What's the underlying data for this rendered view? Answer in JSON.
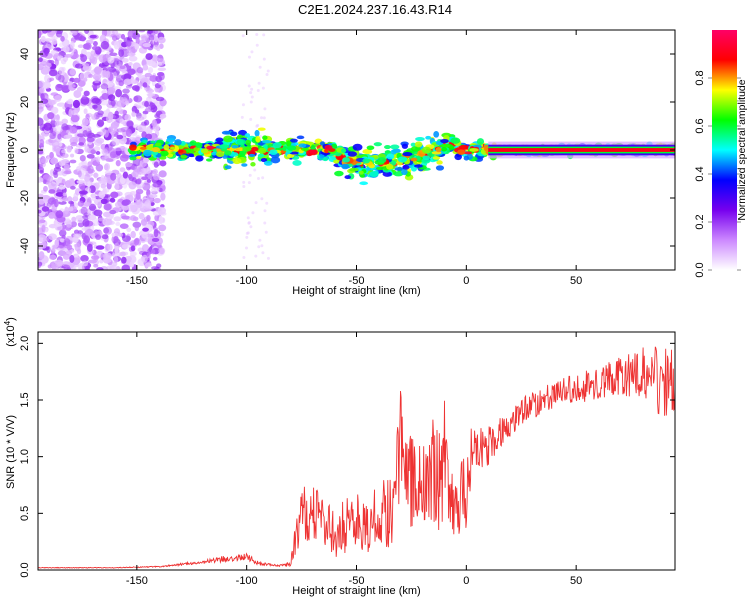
{
  "title": "C2E1.2024.237.16.43.R14",
  "chart_data": [
    {
      "type": "heatmap",
      "xlabel": "Height of straight line (km)",
      "ylabel": "Frequency (Hz)",
      "xlim": [
        -195,
        95
      ],
      "ylim": [
        -50,
        50
      ],
      "xticks": [
        -150,
        -100,
        -50,
        0,
        50
      ],
      "yticks": [
        -40,
        -20,
        0,
        20,
        40
      ],
      "colorbar": {
        "label": "Normalized spectral amplitude",
        "range": [
          0,
          1
        ],
        "ticks": [
          "0.0",
          "0.2",
          "0.4",
          "0.6",
          "0.8"
        ],
        "colors": [
          "#ffffff",
          "#cc88ff",
          "#7700ee",
          "#0000ff",
          "#00ffff",
          "#00ff00",
          "#ffff00",
          "#ff0000",
          "#ff0066"
        ]
      },
      "features": [
        {
          "label": "noise-scatter",
          "x_range": [
            -195,
            -138
          ],
          "freq_range": [
            -50,
            50
          ],
          "amplitude": 0.1
        },
        {
          "label": "signal-band",
          "x_range": [
            -152,
            95
          ],
          "center_freq": 0,
          "peak_amplitude": 0.95
        },
        {
          "label": "strong-tail",
          "x_range": [
            10,
            95
          ],
          "center_freq": 0,
          "amplitude": 0.9
        }
      ]
    },
    {
      "type": "line",
      "xlabel": "Height of straight line (km)",
      "ylabel": "SNR (10 * V/V)",
      "yscale_label": "(x10",
      "yscale_exp": "4",
      "xlim": [
        -195,
        95
      ],
      "ylim": [
        0,
        2.1
      ],
      "xticks": [
        -150,
        -100,
        -50,
        0,
        50
      ],
      "yticks": [
        "0.0",
        "0.5",
        "1.0",
        "1.5",
        "2.0"
      ],
      "series": [
        {
          "color": "#ee3333",
          "x": [
            -195,
            -160,
            -140,
            -130,
            -120,
            -110,
            -100,
            -95,
            -90,
            -85,
            -80,
            -78,
            -75,
            -70,
            -65,
            -60,
            -55,
            -50,
            -45,
            -40,
            -35,
            -32,
            -30,
            -28,
            -25,
            -20,
            -15,
            -12,
            -10,
            -8,
            -5,
            0,
            2,
            5,
            8,
            10,
            15,
            20,
            25,
            30,
            40,
            50,
            60,
            70,
            80,
            85,
            90,
            95
          ],
          "y": [
            0.02,
            0.02,
            0.03,
            0.05,
            0.07,
            0.1,
            0.12,
            0.06,
            0.05,
            0.04,
            0.05,
            0.25,
            0.5,
            0.5,
            0.45,
            0.3,
            0.4,
            0.45,
            0.4,
            0.45,
            0.55,
            0.8,
            1.1,
            0.75,
            0.8,
            0.75,
            0.85,
            0.9,
            0.95,
            0.6,
            0.6,
            0.65,
            1.0,
            1.05,
            1.1,
            1.1,
            1.2,
            1.3,
            1.4,
            1.45,
            1.55,
            1.6,
            1.65,
            1.7,
            1.75,
            1.7,
            1.65,
            1.7
          ],
          "noise": [
            0.003,
            0.003,
            0.005,
            0.01,
            0.015,
            0.03,
            0.03,
            0.02,
            0.01,
            0.01,
            0.02,
            0.15,
            0.25,
            0.25,
            0.25,
            0.2,
            0.25,
            0.25,
            0.25,
            0.3,
            0.35,
            0.5,
            0.55,
            0.4,
            0.45,
            0.4,
            0.5,
            0.55,
            0.6,
            0.4,
            0.35,
            0.35,
            0.25,
            0.2,
            0.2,
            0.18,
            0.15,
            0.12,
            0.12,
            0.12,
            0.12,
            0.13,
            0.15,
            0.18,
            0.22,
            0.3,
            0.3,
            0.3
          ]
        }
      ]
    }
  ]
}
